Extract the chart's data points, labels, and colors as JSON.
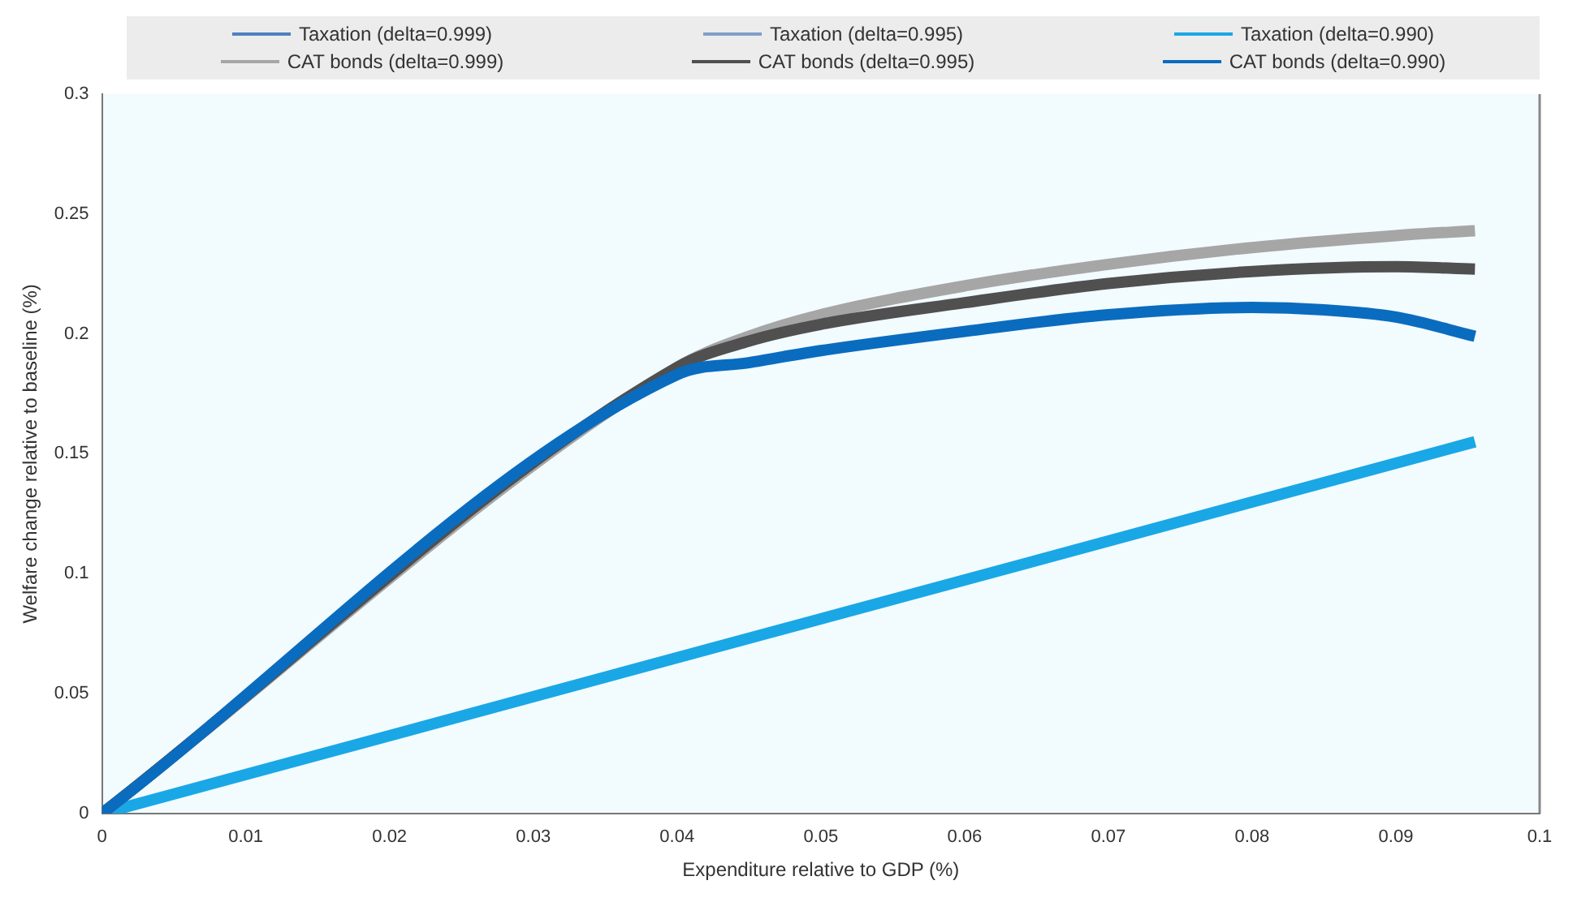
{
  "chart_data": {
    "type": "line",
    "xlabel": "Expenditure relative to GDP (%)",
    "ylabel": "Welfare change relative to baseline (%)",
    "xlim": [
      0,
      0.1
    ],
    "xticks": [
      0,
      0.01,
      0.02,
      0.03,
      0.04,
      0.05,
      0.06,
      0.07,
      0.08,
      0.09,
      0.1
    ],
    "ylim": [
      0,
      0.3
    ],
    "yticks": [
      0,
      0.05,
      0.1,
      0.15,
      0.2,
      0.25,
      0.3
    ],
    "grid": false,
    "legend": "top",
    "series": [
      {
        "name": "Taxation (delta=0.999)",
        "color": "#4f81bd"
      },
      {
        "name": "Taxation (delta=0.995)",
        "color": "#7f9fc8"
      },
      {
        "name": "Taxation (delta=0.990)",
        "color": "#1aa7e6",
        "x": [
          0,
          0.0955
        ],
        "values": [
          0,
          0.155
        ]
      },
      {
        "name": "CAT bonds (delta=0.999)",
        "color": "#a6a6a6",
        "x": [
          0,
          0.04,
          0.045,
          0.05,
          0.06,
          0.07,
          0.08,
          0.09,
          0.0955
        ],
        "values": [
          0,
          0.186,
          0.199,
          0.208,
          0.22,
          0.229,
          0.236,
          0.241,
          0.243
        ]
      },
      {
        "name": "CAT bonds (delta=0.995)",
        "color": "#505050",
        "x": [
          0,
          0.04,
          0.045,
          0.05,
          0.06,
          0.07,
          0.08,
          0.09,
          0.0955
        ],
        "values": [
          0,
          0.186,
          0.197,
          0.204,
          0.213,
          0.221,
          0.226,
          0.228,
          0.227
        ]
      },
      {
        "name": "CAT bonds (delta=0.990)",
        "color": "#0a6cbf",
        "x": [
          0,
          0.04,
          0.045,
          0.05,
          0.06,
          0.07,
          0.08,
          0.085,
          0.09,
          0.0955
        ],
        "values": [
          0,
          0.183,
          0.188,
          0.193,
          0.201,
          0.208,
          0.211,
          0.21,
          0.207,
          0.199
        ]
      }
    ]
  }
}
